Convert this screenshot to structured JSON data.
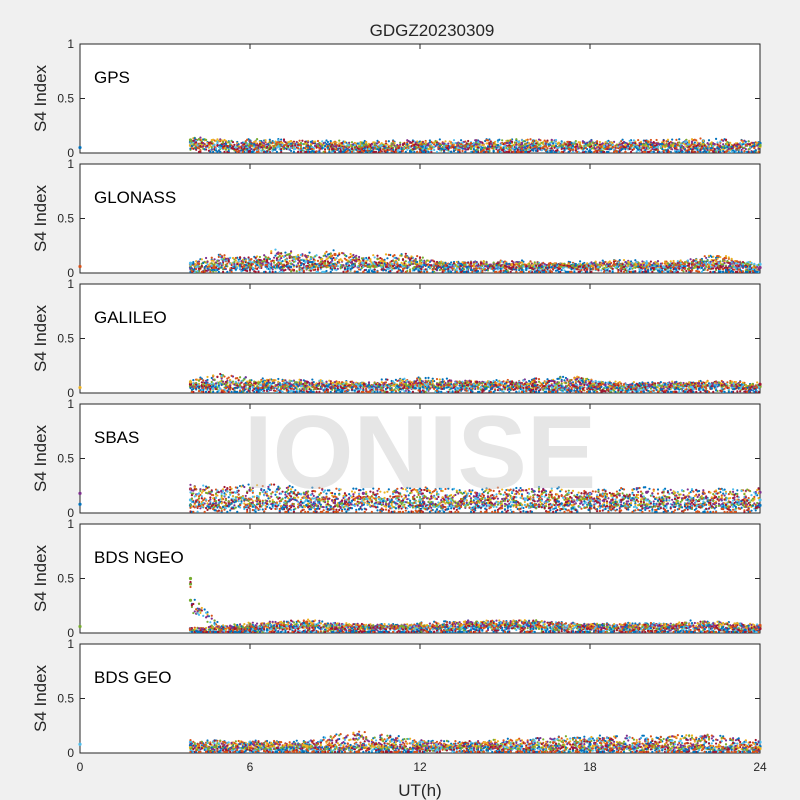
{
  "chart_data": {
    "type": "scatter",
    "title": "GDGZ20230309",
    "xlabel": "UT(h)",
    "ylabel": "S4 Index",
    "xlim": [
      0,
      24
    ],
    "ylim": [
      0,
      1
    ],
    "xticks": [
      "0",
      "6",
      "12",
      "18",
      "24"
    ],
    "yticks": [
      "0",
      "0.5",
      "1"
    ],
    "grid": false,
    "watermark": "IONISE",
    "series_colors": [
      "#0072BD",
      "#D95319",
      "#EDB120",
      "#7E2F8E",
      "#77AC30",
      "#4DBEEE",
      "#A2142F"
    ],
    "panels": [
      {
        "name": "GPS",
        "series": [
          {
            "x": [
              0,
              3.9,
              6,
              8,
              10,
              12,
              14,
              16,
              18,
              20,
              22,
              24
            ],
            "y": [
              0.05,
              0.1,
              0.11,
              0.1,
              0.09,
              0.1,
              0.1,
              0.11,
              0.1,
              0.1,
              0.11,
              0.09
            ]
          },
          {
            "x": [
              3.9,
              6,
              8,
              10,
              12,
              14,
              16,
              18,
              20,
              22,
              24
            ],
            "y": [
              0.07,
              0.06,
              0.06,
              0.05,
              0.06,
              0.06,
              0.05,
              0.06,
              0.06,
              0.05,
              0.06
            ]
          },
          {
            "x": [
              3.9,
              6,
              8,
              10,
              12,
              14,
              16,
              18,
              20,
              22,
              24
            ],
            "y": [
              0.12,
              0.08,
              0.09,
              0.07,
              0.08,
              0.09,
              0.08,
              0.08,
              0.09,
              0.08,
              0.07
            ]
          }
        ]
      },
      {
        "name": "GLONASS",
        "series": [
          {
            "x": [
              0,
              3.9,
              5,
              6,
              7,
              8,
              9,
              10,
              11.5,
              13,
              15,
              17,
              19,
              21,
              22.5,
              24
            ],
            "y": [
              0.06,
              0.08,
              0.15,
              0.12,
              0.18,
              0.15,
              0.17,
              0.13,
              0.15,
              0.08,
              0.1,
              0.08,
              0.1,
              0.08,
              0.15,
              0.05
            ]
          },
          {
            "x": [
              3.9,
              6,
              8,
              10,
              12,
              14,
              16,
              18,
              20,
              22,
              24
            ],
            "y": [
              0.05,
              0.07,
              0.06,
              0.08,
              0.07,
              0.06,
              0.07,
              0.08,
              0.06,
              0.07,
              0.05
            ]
          },
          {
            "x": [
              3.9,
              6,
              8,
              10,
              12,
              14,
              16,
              18,
              20,
              22,
              24
            ],
            "y": [
              0.09,
              0.1,
              0.11,
              0.09,
              0.08,
              0.09,
              0.07,
              0.08,
              0.09,
              0.1,
              0.08
            ]
          }
        ]
      },
      {
        "name": "GALILEO",
        "series": [
          {
            "x": [
              0,
              3.9,
              5,
              6,
              8,
              10,
              12,
              14,
              16,
              17.5,
              19,
              21,
              23,
              24
            ],
            "y": [
              0.05,
              0.1,
              0.15,
              0.11,
              0.1,
              0.09,
              0.12,
              0.09,
              0.11,
              0.13,
              0.07,
              0.09,
              0.1,
              0.06
            ]
          },
          {
            "x": [
              3.9,
              6,
              8,
              10,
              12,
              14,
              16,
              18,
              20,
              22,
              24
            ],
            "y": [
              0.06,
              0.07,
              0.06,
              0.07,
              0.06,
              0.07,
              0.06,
              0.05,
              0.06,
              0.07,
              0.06
            ]
          },
          {
            "x": [
              3.9,
              6,
              8,
              10,
              12,
              14,
              16,
              18,
              20,
              22,
              24
            ],
            "y": [
              0.08,
              0.09,
              0.1,
              0.08,
              0.09,
              0.1,
              0.08,
              0.09,
              0.08,
              0.09,
              0.08
            ]
          }
        ]
      },
      {
        "name": "SBAS",
        "series": [
          {
            "x": [
              0,
              3.9,
              5,
              6,
              7,
              8,
              10,
              12,
              14,
              16,
              18,
              20,
              22,
              24
            ],
            "y": [
              0.18,
              0.22,
              0.2,
              0.21,
              0.22,
              0.19,
              0.18,
              0.19,
              0.18,
              0.2,
              0.18,
              0.19,
              0.18,
              0.19
            ]
          },
          {
            "x": [
              3.9,
              6,
              8,
              10,
              12,
              14,
              16,
              18,
              20,
              22,
              24
            ],
            "y": [
              0.12,
              0.13,
              0.12,
              0.13,
              0.12,
              0.13,
              0.12,
              0.13,
              0.12,
              0.13,
              0.12
            ]
          },
          {
            "x": [
              0,
              3.9,
              6,
              8,
              10,
              12,
              14,
              16,
              18,
              20,
              22,
              24
            ],
            "y": [
              0.08,
              0.07,
              0.08,
              0.07,
              0.08,
              0.07,
              0.08,
              0.07,
              0.08,
              0.07,
              0.08,
              0.07
            ]
          }
        ]
      },
      {
        "name": "BDS NGEO",
        "series": [
          {
            "x": [
              0,
              3.9,
              3.9,
              3.9,
              5,
              6,
              8,
              10,
              12,
              14,
              16,
              18,
              20,
              22,
              24
            ],
            "y": [
              0.06,
              0.5,
              0.45,
              0.3,
              0.05,
              0.06,
              0.09,
              0.06,
              0.08,
              0.1,
              0.09,
              0.07,
              0.08,
              0.1,
              0.06
            ]
          },
          {
            "x": [
              3.9,
              6,
              8,
              10,
              12,
              14,
              16,
              18,
              20,
              22,
              24
            ],
            "y": [
              0.04,
              0.05,
              0.06,
              0.05,
              0.06,
              0.07,
              0.06,
              0.05,
              0.05,
              0.06,
              0.04
            ]
          },
          {
            "x": [
              3.9,
              6,
              8,
              10,
              12,
              14,
              16,
              18,
              20,
              22,
              24
            ],
            "y": [
              0.03,
              0.08,
              0.1,
              0.07,
              0.06,
              0.09,
              0.1,
              0.07,
              0.06,
              0.08,
              0.07
            ]
          }
        ]
      },
      {
        "name": "BDS GEO",
        "series": [
          {
            "x": [
              0,
              3.9,
              6,
              8,
              9.8,
              12,
              14,
              16,
              18,
              20,
              22,
              24
            ],
            "y": [
              0.08,
              0.1,
              0.1,
              0.09,
              0.17,
              0.1,
              0.09,
              0.12,
              0.13,
              0.13,
              0.14,
              0.1
            ]
          },
          {
            "x": [
              3.9,
              6,
              8,
              10,
              12,
              14,
              16,
              18,
              20,
              22,
              24
            ],
            "y": [
              0.07,
              0.08,
              0.07,
              0.08,
              0.07,
              0.08,
              0.07,
              0.08,
              0.08,
              0.07,
              0.06
            ]
          },
          {
            "x": [
              3.9,
              6,
              8,
              10,
              12,
              14,
              16,
              18,
              20,
              22,
              24
            ],
            "y": [
              0.05,
              0.05,
              0.06,
              0.05,
              0.05,
              0.06,
              0.05,
              0.05,
              0.06,
              0.05,
              0.04
            ]
          }
        ]
      }
    ]
  }
}
